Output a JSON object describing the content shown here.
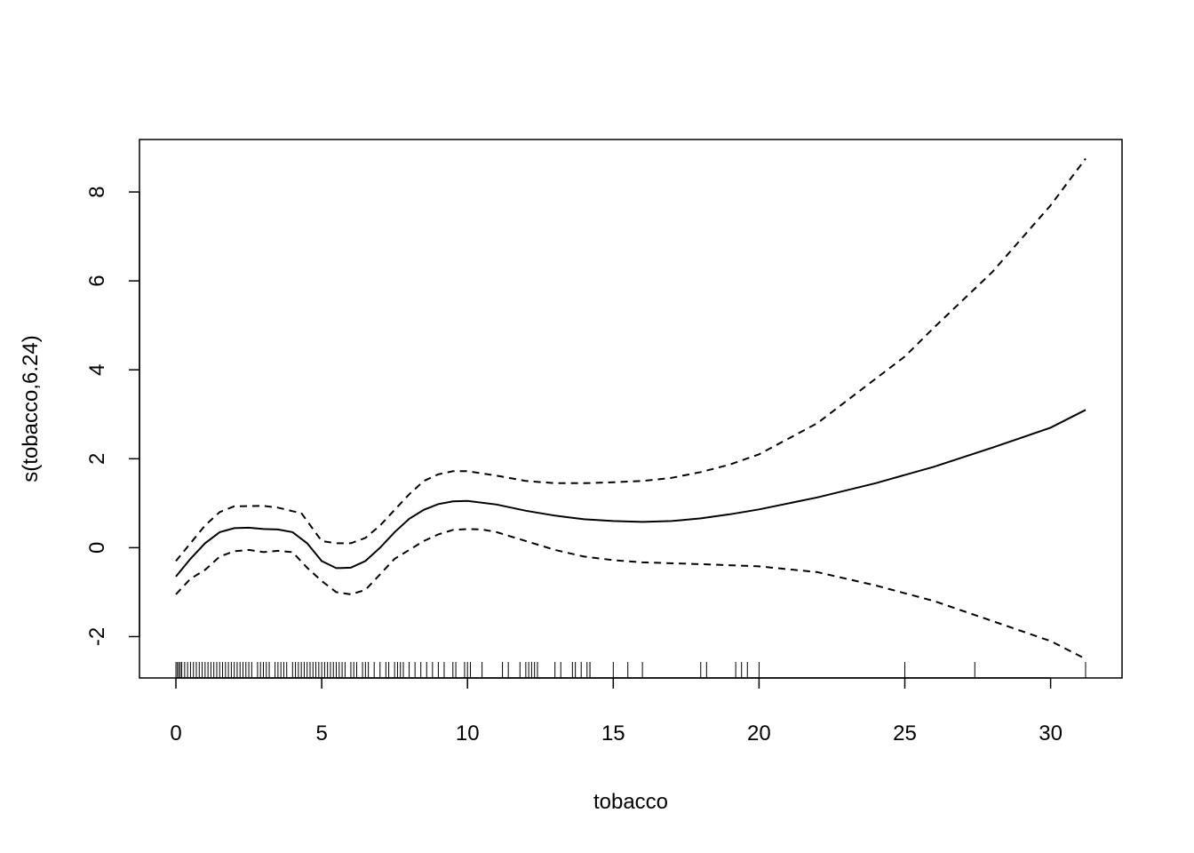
{
  "chart_data": {
    "type": "line",
    "title": "",
    "xlabel": "tobacco",
    "ylabel": "s(tobacco,6.24)",
    "xlim": [
      -1.25,
      32.45
    ],
    "ylim": [
      -2.93,
      9.18
    ],
    "xticks": [
      0,
      5,
      10,
      15,
      20,
      25,
      30
    ],
    "yticks": [
      -2,
      0,
      2,
      4,
      6,
      8
    ],
    "grid": false,
    "series": [
      {
        "style": "solid",
        "color": "#000000",
        "x": [
          0,
          0.5,
          1,
          1.5,
          2,
          2.5,
          3,
          3.5,
          4,
          4.5,
          5,
          5.5,
          6,
          6.5,
          7,
          7.5,
          8,
          8.5,
          9,
          9.5,
          10,
          11,
          12,
          13,
          14,
          15,
          16,
          17,
          18,
          19,
          20,
          22,
          24,
          26,
          28,
          30,
          31.2
        ],
        "y": [
          -0.65,
          -0.25,
          0.1,
          0.35,
          0.44,
          0.45,
          0.42,
          0.41,
          0.35,
          0.1,
          -0.3,
          -0.46,
          -0.45,
          -0.3,
          0,
          0.35,
          0.65,
          0.85,
          0.98,
          1.04,
          1.05,
          0.97,
          0.83,
          0.72,
          0.64,
          0.6,
          0.58,
          0.6,
          0.66,
          0.75,
          0.86,
          1.13,
          1.45,
          1.82,
          2.25,
          2.7,
          3.1
        ]
      },
      {
        "style": "dashed",
        "color": "#000000",
        "x": [
          0,
          0.5,
          1,
          1.5,
          2,
          3,
          3.5,
          4,
          4.3,
          5,
          5.5,
          6,
          6.5,
          7,
          7.5,
          8,
          8.5,
          9,
          9.5,
          10,
          11,
          12,
          13,
          14,
          15,
          16,
          17,
          18,
          19,
          20,
          22,
          24,
          25,
          26,
          28,
          30,
          31.2
        ],
        "y": [
          -0.3,
          0.1,
          0.5,
          0.8,
          0.93,
          0.94,
          0.9,
          0.82,
          0.78,
          0.15,
          0.1,
          0.1,
          0.22,
          0.5,
          0.85,
          1.2,
          1.5,
          1.65,
          1.72,
          1.72,
          1.62,
          1.5,
          1.45,
          1.45,
          1.47,
          1.5,
          1.57,
          1.7,
          1.87,
          2.1,
          2.8,
          3.8,
          4.3,
          4.95,
          6.2,
          7.7,
          8.75
        ]
      },
      {
        "style": "dashed",
        "color": "#000000",
        "x": [
          0,
          0.5,
          1,
          1.5,
          2,
          2.5,
          3,
          3.5,
          4,
          4.5,
          5,
          5.5,
          6,
          6.5,
          7,
          7.5,
          8,
          8.5,
          9,
          9.5,
          10,
          10.5,
          11,
          12,
          13,
          14,
          15,
          16,
          18,
          20,
          22,
          24,
          26,
          28,
          30,
          31.2
        ],
        "y": [
          -1.05,
          -0.7,
          -0.5,
          -0.2,
          -0.08,
          -0.05,
          -0.1,
          -0.07,
          -0.1,
          -0.45,
          -0.75,
          -1.0,
          -1.05,
          -0.95,
          -0.6,
          -0.25,
          -0.05,
          0.15,
          0.3,
          0.4,
          0.42,
          0.41,
          0.35,
          0.15,
          -0.05,
          -0.2,
          -0.28,
          -0.33,
          -0.37,
          -0.42,
          -0.55,
          -0.85,
          -1.2,
          -1.65,
          -2.1,
          -2.5
        ]
      }
    ],
    "rug": [
      0,
      0.05,
      0.1,
      0.15,
      0.2,
      0.3,
      0.4,
      0.5,
      0.6,
      0.7,
      0.8,
      0.9,
      1.0,
      1.1,
      1.2,
      1.3,
      1.4,
      1.5,
      1.6,
      1.7,
      1.8,
      1.9,
      2.0,
      2.1,
      2.2,
      2.3,
      2.4,
      2.5,
      2.6,
      2.8,
      2.9,
      3.0,
      3.1,
      3.2,
      3.4,
      3.5,
      3.6,
      3.7,
      3.8,
      4.0,
      4.1,
      4.2,
      4.3,
      4.4,
      4.5,
      4.6,
      4.7,
      4.8,
      4.9,
      5.0,
      5.1,
      5.2,
      5.3,
      5.4,
      5.5,
      5.6,
      5.7,
      5.8,
      6.0,
      6.1,
      6.2,
      6.4,
      6.5,
      6.6,
      6.8,
      7.0,
      7.2,
      7.3,
      7.5,
      7.6,
      7.7,
      7.8,
      8.0,
      8.2,
      8.4,
      8.6,
      8.8,
      9.0,
      9.2,
      9.5,
      9.6,
      9.9,
      10.0,
      10.1,
      10.5,
      11.2,
      11.4,
      11.8,
      12.0,
      12.1,
      12.2,
      12.3,
      12.4,
      12.4,
      13.0,
      13.2,
      13.6,
      13.7,
      13.9,
      14.1,
      14.2,
      14.2,
      15.0,
      15.5,
      16.0,
      18.0,
      18.2,
      19.2,
      19.4,
      19.6,
      20.0,
      25.0,
      27.4,
      31.2
    ]
  }
}
